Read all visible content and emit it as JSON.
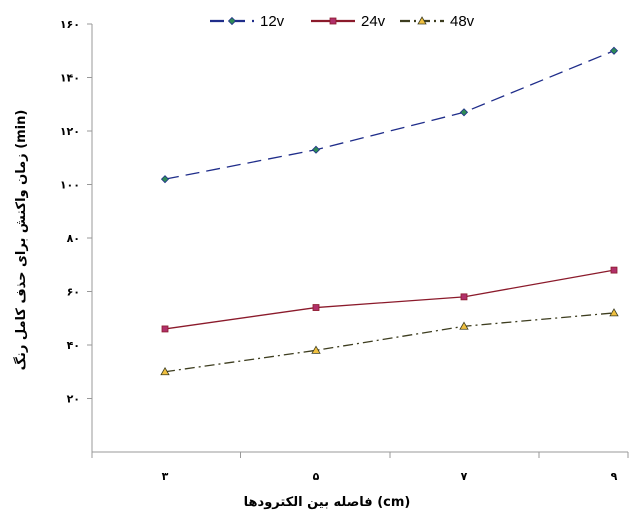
{
  "chart_data": {
    "type": "line",
    "x": [
      3,
      5,
      7,
      9
    ],
    "x_tick_labels": [
      "۳",
      "۵",
      "۷",
      "۹"
    ],
    "ylim": [
      0,
      160
    ],
    "y_ticks": [
      20,
      40,
      60,
      80,
      100,
      120,
      140,
      160
    ],
    "y_tick_labels": [
      "۲۰",
      "۴۰",
      "۶۰",
      "۸۰",
      "۱۰۰",
      "۱۲۰",
      "۱۴۰",
      "۱۶۰"
    ],
    "xlabel": "فاصله بین الکترودها (cm)",
    "ylabel": "زمان واکنش برای حذف کامل رنگ (min)",
    "legend_position": "top",
    "grid": false,
    "series": [
      {
        "name": "12v",
        "values": [
          102,
          113,
          127,
          150
        ],
        "color": "#1f2d8a",
        "dash": "14,7",
        "marker": "diamond",
        "marker_color": "#2e8b57"
      },
      {
        "name": "24v",
        "values": [
          46,
          54,
          58,
          68
        ],
        "color": "#8b1a2b",
        "dash": "",
        "marker": "square",
        "marker_color": "#b0306a"
      },
      {
        "name": "48v",
        "values": [
          30,
          38,
          47,
          52
        ],
        "color": "#3d3d1f",
        "dash": "10,4,2,4",
        "marker": "triangle",
        "marker_color": "#f0c040"
      }
    ]
  }
}
